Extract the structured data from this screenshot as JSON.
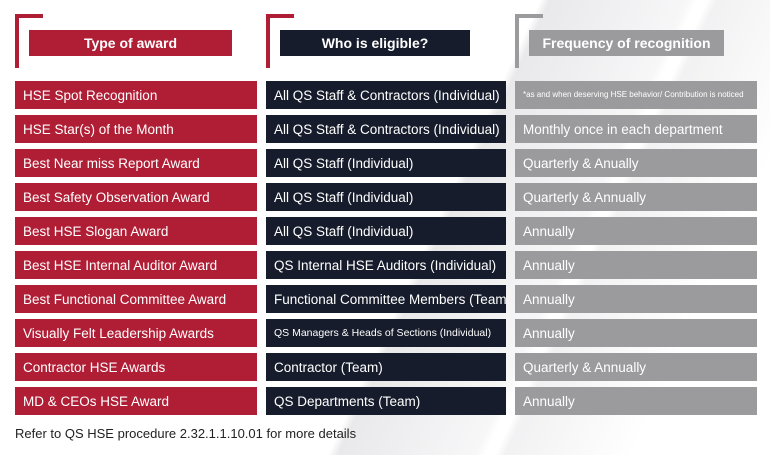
{
  "colors": {
    "red": "#b01e35",
    "navy": "#161c2b",
    "grey": "#9b9b9d"
  },
  "headers": {
    "type": "Type of award",
    "eligible": "Who is eligible?",
    "frequency": "Frequency of recognition"
  },
  "rows": [
    {
      "award": "HSE Spot Recognition",
      "eligible": "All QS Staff & Contractors (Individual)",
      "frequency": "*as and when deserving HSE behavior/ Contribution is noticed"
    },
    {
      "award": "HSE Star(s) of the Month",
      "eligible": "All QS Staff & Contractors (Individual)",
      "frequency": "Monthly once in each department"
    },
    {
      "award": "Best Near miss Report Award",
      "eligible": "All QS Staff (Individual)",
      "frequency": "Quarterly & Anually"
    },
    {
      "award": "Best Safety Observation Award",
      "eligible": "All QS Staff (Individual)",
      "frequency": "Quarterly & Annually"
    },
    {
      "award": "Best HSE Slogan Award",
      "eligible": "All QS Staff (Individual)",
      "frequency": "Annually"
    },
    {
      "award": "Best HSE Internal Auditor Award",
      "eligible": "QS Internal HSE Auditors (Individual)",
      "frequency": "Annually"
    },
    {
      "award": "Best Functional Committee Award",
      "eligible": "Functional Committee Members (Team)",
      "frequency": "Annually"
    },
    {
      "award": "Visually Felt Leadership Awards",
      "eligible": "QS Managers & Heads of Sections (Individual)",
      "frequency": "Annually"
    },
    {
      "award": "Contractor HSE Awards",
      "eligible": "Contractor (Team)",
      "frequency": "Quarterly & Annually"
    },
    {
      "award": "MD & CEOs HSE Award",
      "eligible": "QS Departments (Team)",
      "frequency": "Annually"
    }
  ],
  "footer": "Refer to QS HSE procedure 2.32.1.1.10.01 for more details"
}
